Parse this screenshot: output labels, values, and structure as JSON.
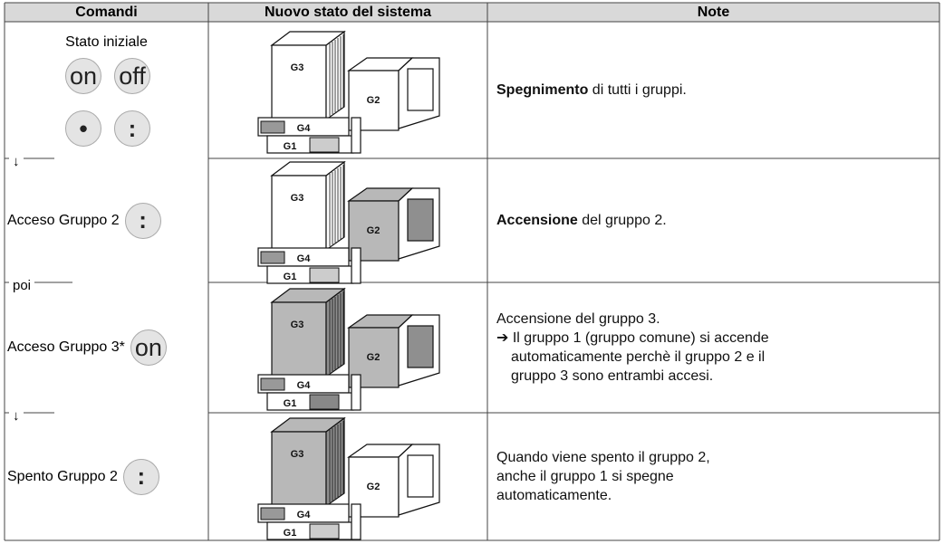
{
  "header": [
    "Comandi",
    "Nuovo stato del sistema",
    "Note"
  ],
  "rows": [
    {
      "command": "Stato iniziale",
      "buttons": [
        "on",
        "off",
        "•",
        ":"
      ],
      "building": [
        "G3",
        "G2",
        "G4",
        "G1"
      ],
      "shaded": [],
      "note": [
        {
          "spans": [
            {
              "text": "Spegnimento",
              "bold": true
            },
            {
              "text": " di tutti i gruppi."
            }
          ]
        }
      ]
    },
    {
      "command": "Acceso Gruppo 2",
      "buttons": [
        ":"
      ],
      "building": [
        "G3",
        "G2",
        "G4",
        "G1"
      ],
      "shaded": [
        "G2"
      ],
      "note": [
        {
          "spans": [
            {
              "text": "Accensione",
              "bold": true
            },
            {
              "text": " del gruppo 2."
            }
          ]
        }
      ]
    },
    {
      "command": "Acceso Gruppo 3*",
      "buttons": [
        "on"
      ],
      "building": [
        "G3",
        "G2",
        "G4",
        "G1"
      ],
      "shaded": [
        "G3",
        "G2",
        "G1"
      ],
      "note": [
        {
          "spans": [
            {
              "text": "Accensione del gruppo 3."
            }
          ]
        },
        {
          "spans": [
            {
              "text": "➔ Il gruppo 1 (gruppo comune) si accende"
            }
          ]
        },
        {
          "spans": [
            {
              "text": "automaticamente perchè il gruppo 2 e il"
            }
          ],
          "indent": true
        },
        {
          "spans": [
            {
              "text": "gruppo 3 sono entrambi accesi."
            }
          ],
          "indent": true
        }
      ]
    },
    {
      "command": "Spento Gruppo 2",
      "buttons": [
        ":"
      ],
      "building": [
        "G3",
        "G2",
        "G4",
        "G1"
      ],
      "shaded": [
        "G3"
      ],
      "note": [
        {
          "spans": [
            {
              "text": "Quando viene spento il gruppo 2,"
            }
          ]
        },
        {
          "spans": [
            {
              "text": "anche il gruppo 1 si spegne"
            }
          ]
        },
        {
          "spans": [
            {
              "text": "automaticamente."
            }
          ]
        }
      ]
    }
  ],
  "connectors": [
    "↓",
    "poi",
    "↓"
  ]
}
